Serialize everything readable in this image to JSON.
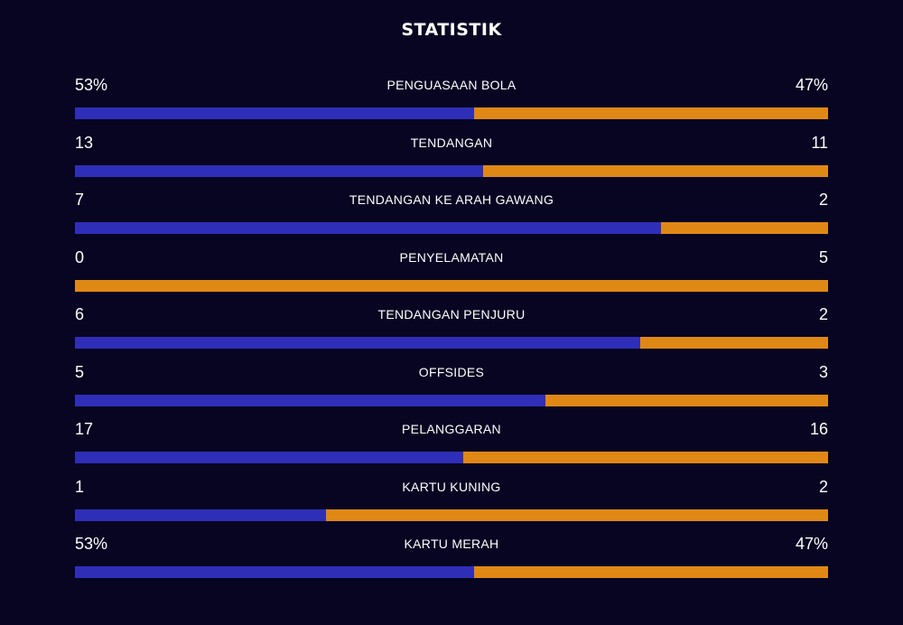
{
  "title": "STATISTIK",
  "colors": {
    "background": "#070522",
    "home": "#2f2eb8",
    "away": "#e08816"
  },
  "stats": [
    {
      "label": "PENGUASAAN BOLA",
      "left": "53%",
      "right": "47%",
      "home_share": 0.53
    },
    {
      "label": "TENDANGAN",
      "left": "13",
      "right": "11",
      "home_share": 0.5417
    },
    {
      "label": "TENDANGAN KE ARAH GAWANG",
      "left": "7",
      "right": "2",
      "home_share": 0.7778
    },
    {
      "label": "PENYELAMATAN",
      "left": "0",
      "right": "5",
      "home_share": 0.0
    },
    {
      "label": "TENDANGAN PENJURU",
      "left": "6",
      "right": "2",
      "home_share": 0.75
    },
    {
      "label": "OFFSIDES",
      "left": "5",
      "right": "3",
      "home_share": 0.625
    },
    {
      "label": "PELANGGARAN",
      "left": "17",
      "right": "16",
      "home_share": 0.5152
    },
    {
      "label": "KARTU KUNING",
      "left": "1",
      "right": "2",
      "home_share": 0.3333
    },
    {
      "label": "KARTU MERAH",
      "left": "53%",
      "right": "47%",
      "home_share": 0.53
    }
  ]
}
